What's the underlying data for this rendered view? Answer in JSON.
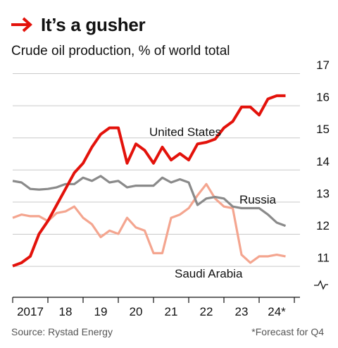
{
  "header": {
    "title": "It’s a gusher",
    "subtitle": "Crude oil production, % of world total",
    "arrow_icon": "right-arrow-icon",
    "accent_color": "#e3120b"
  },
  "footer": {
    "source": "Source: Rystad Energy",
    "footnote": "*Forecast for Q4"
  },
  "chart_data": {
    "type": "line",
    "title": "It’s a gusher",
    "subtitle": "Crude oil production, % of world total",
    "xlabel": "",
    "ylabel": "",
    "x_ticks": [
      "2017",
      "18",
      "19",
      "20",
      "21",
      "22",
      "23",
      "24*"
    ],
    "xlim": [
      2017,
      2025
    ],
    "y_ticks": [
      11,
      12,
      13,
      14,
      15,
      16,
      17
    ],
    "ylim": [
      10.6,
      17
    ],
    "axis_break": true,
    "grid": true,
    "legend": "direct labels",
    "series": [
      {
        "name": "United States",
        "color": "#e3120b",
        "points": [
          [
            2017.0,
            11.0
          ],
          [
            2017.25,
            11.1
          ],
          [
            2017.5,
            11.3
          ],
          [
            2017.75,
            12.0
          ],
          [
            2018.0,
            12.4
          ],
          [
            2018.25,
            12.9
          ],
          [
            2018.5,
            13.4
          ],
          [
            2018.75,
            13.9
          ],
          [
            2019.0,
            14.2
          ],
          [
            2019.25,
            14.7
          ],
          [
            2019.5,
            15.1
          ],
          [
            2019.75,
            15.3
          ],
          [
            2020.0,
            15.3
          ],
          [
            2020.25,
            14.2
          ],
          [
            2020.5,
            14.8
          ],
          [
            2020.75,
            14.6
          ],
          [
            2021.0,
            14.2
          ],
          [
            2021.25,
            14.7
          ],
          [
            2021.5,
            14.3
          ],
          [
            2021.75,
            14.5
          ],
          [
            2022.0,
            14.3
          ],
          [
            2022.25,
            14.8
          ],
          [
            2022.5,
            14.85
          ],
          [
            2022.75,
            14.95
          ],
          [
            2023.0,
            15.3
          ],
          [
            2023.25,
            15.5
          ],
          [
            2023.5,
            15.95
          ],
          [
            2023.75,
            15.95
          ],
          [
            2024.0,
            15.7
          ],
          [
            2024.25,
            16.2
          ],
          [
            2024.5,
            16.3
          ],
          [
            2024.75,
            16.3
          ]
        ]
      },
      {
        "name": "Russia",
        "color": "#8a8a8a",
        "points": [
          [
            2017.0,
            13.65
          ],
          [
            2017.25,
            13.6
          ],
          [
            2017.5,
            13.4
          ],
          [
            2017.75,
            13.38
          ],
          [
            2018.0,
            13.4
          ],
          [
            2018.25,
            13.45
          ],
          [
            2018.5,
            13.55
          ],
          [
            2018.75,
            13.55
          ],
          [
            2019.0,
            13.75
          ],
          [
            2019.25,
            13.65
          ],
          [
            2019.5,
            13.8
          ],
          [
            2019.75,
            13.6
          ],
          [
            2020.0,
            13.65
          ],
          [
            2020.25,
            13.45
          ],
          [
            2020.5,
            13.5
          ],
          [
            2020.75,
            13.5
          ],
          [
            2021.0,
            13.5
          ],
          [
            2021.25,
            13.75
          ],
          [
            2021.5,
            13.6
          ],
          [
            2021.75,
            13.7
          ],
          [
            2022.0,
            13.6
          ],
          [
            2022.25,
            12.9
          ],
          [
            2022.5,
            13.1
          ],
          [
            2022.75,
            13.15
          ],
          [
            2023.0,
            13.1
          ],
          [
            2023.25,
            12.85
          ],
          [
            2023.5,
            12.8
          ],
          [
            2023.75,
            12.8
          ],
          [
            2024.0,
            12.8
          ],
          [
            2024.25,
            12.6
          ],
          [
            2024.5,
            12.35
          ],
          [
            2024.75,
            12.25
          ]
        ]
      },
      {
        "name": "Saudi Arabia",
        "color": "#f4a58f",
        "points": [
          [
            2017.0,
            12.5
          ],
          [
            2017.25,
            12.6
          ],
          [
            2017.5,
            12.55
          ],
          [
            2017.75,
            12.55
          ],
          [
            2018.0,
            12.4
          ],
          [
            2018.25,
            12.65
          ],
          [
            2018.5,
            12.7
          ],
          [
            2018.75,
            12.85
          ],
          [
            2019.0,
            12.5
          ],
          [
            2019.25,
            12.3
          ],
          [
            2019.5,
            11.9
          ],
          [
            2019.75,
            12.1
          ],
          [
            2020.0,
            12.0
          ],
          [
            2020.25,
            12.5
          ],
          [
            2020.5,
            12.2
          ],
          [
            2020.75,
            12.1
          ],
          [
            2021.0,
            11.4
          ],
          [
            2021.25,
            11.4
          ],
          [
            2021.5,
            12.5
          ],
          [
            2021.75,
            12.6
          ],
          [
            2022.0,
            12.8
          ],
          [
            2022.25,
            13.2
          ],
          [
            2022.5,
            13.55
          ],
          [
            2022.75,
            13.1
          ],
          [
            2023.0,
            12.85
          ],
          [
            2023.25,
            12.8
          ],
          [
            2023.5,
            11.35
          ],
          [
            2023.75,
            11.1
          ],
          [
            2024.0,
            11.3
          ],
          [
            2024.25,
            11.3
          ],
          [
            2024.5,
            11.35
          ],
          [
            2024.75,
            11.3
          ]
        ]
      }
    ]
  }
}
